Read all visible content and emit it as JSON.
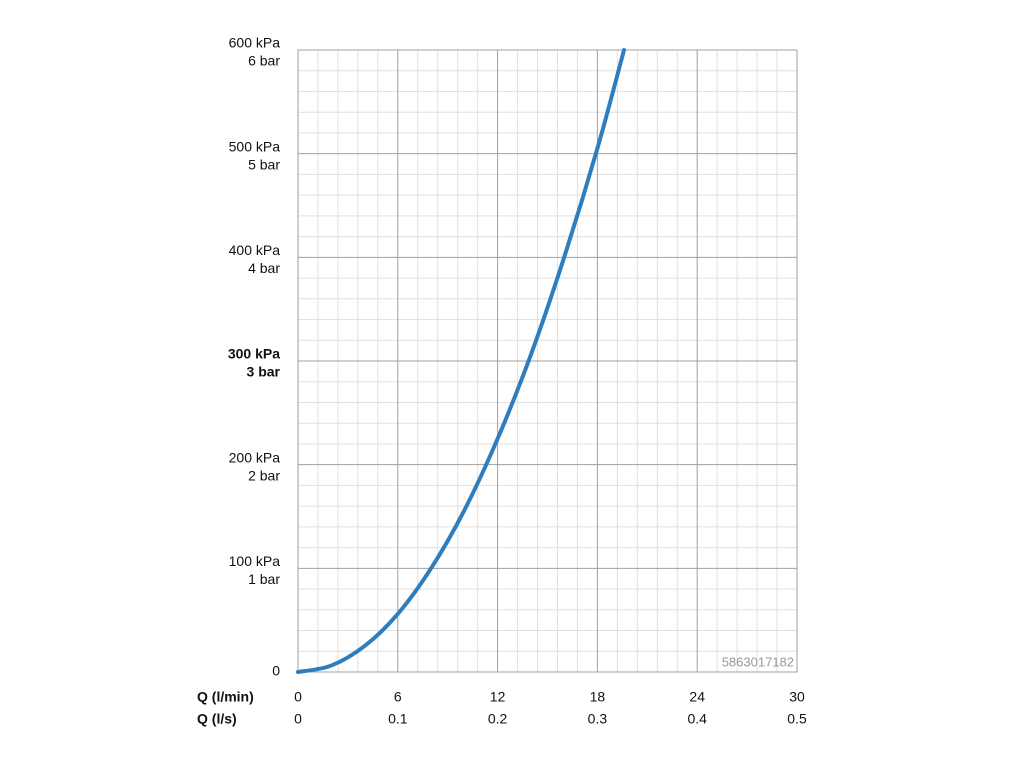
{
  "chart_data": {
    "type": "line",
    "x": [
      0,
      2,
      4,
      6,
      8,
      10,
      12,
      14,
      16,
      18,
      19.6
    ],
    "values": [
      0,
      6.2,
      25,
      56,
      100,
      156,
      225,
      306,
      400,
      505,
      600
    ],
    "color": "#2e7ebf",
    "xlabel": "Q (l/min)",
    "x2label": "Q (l/s)",
    "xlim": [
      0,
      30
    ],
    "xticks": [
      0,
      6,
      12,
      18,
      24,
      30
    ],
    "x2lim": [
      0,
      0.5
    ],
    "x2ticks": [
      0,
      0.1,
      0.2,
      0.3,
      0.4,
      0.5
    ],
    "ylim": [
      0,
      600
    ],
    "yticks": [
      0,
      {
        "value": 100,
        "label": "100 kPa"
      },
      {
        "value": 200,
        "label": "200 kPa"
      },
      {
        "value": 300,
        "label": "300 kPa"
      },
      {
        "value": 400,
        "label": "400 kPa"
      },
      {
        "value": 500,
        "label": "500 kPa"
      },
      {
        "value": 600,
        "label": "600 kPa"
      }
    ],
    "y2lim": [
      0,
      6
    ],
    "y2ticks": [
      {
        "value": 1,
        "label": "1 bar"
      },
      {
        "value": 2,
        "label": "2 bar"
      },
      {
        "value": 3,
        "label": "3 bar"
      },
      {
        "value": 4,
        "label": "4 bar"
      },
      {
        "value": 5,
        "label": "5 bar"
      },
      {
        "value": 6,
        "label": "6 bar"
      }
    ],
    "highlight_ytick": 300,
    "grid": true,
    "minor_grid_divisions": 5,
    "watermark": "5863017182"
  }
}
